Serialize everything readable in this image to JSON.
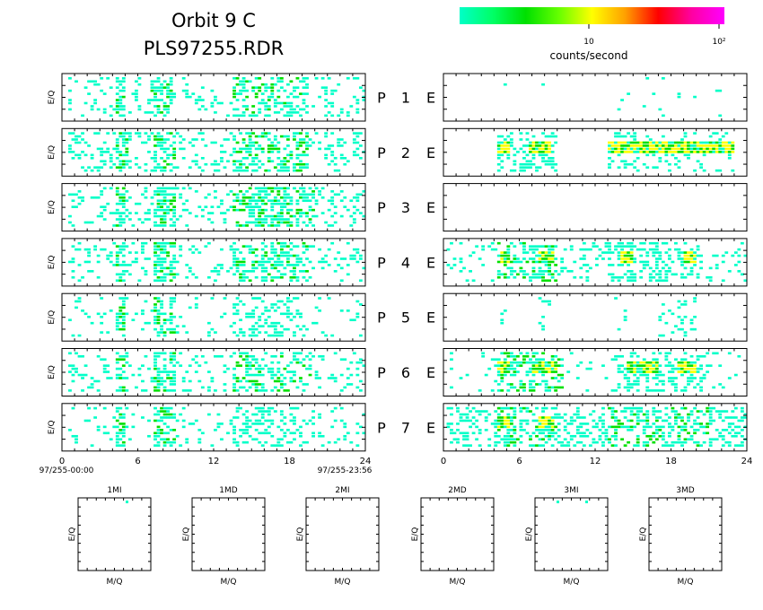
{
  "header": {
    "title_line1": "Orbit  9  C",
    "title_line2": "PLS97255.RDR"
  },
  "colorbar": {
    "colors": [
      "#00ffc8",
      "#00ff66",
      "#00e000",
      "#66ff00",
      "#ffff00",
      "#ffa000",
      "#ff0000",
      "#ff00a0",
      "#ff00ff"
    ],
    "tick_labels": [
      "10",
      "10²"
    ],
    "label": "counts/second"
  },
  "chart_data": {
    "type": "heatmap",
    "description_none": "",
    "x_range": [
      0,
      24
    ],
    "x_ticks": [
      "0",
      "6",
      "12",
      "18",
      "24"
    ],
    "y_label": "E/Q",
    "time_start": "97/255-00:00",
    "time_end": "97/255-23:56",
    "cell_colors": {
      "low": "#00ffc8",
      "mid": "#00e000",
      "high": "#ffff00"
    },
    "rows": [
      {
        "label": "P",
        "number": "1",
        "right": "E",
        "left_bands": [
          [
            0.5,
            24,
            0.15
          ],
          [
            4.3,
            5.0,
            0.6
          ],
          [
            7.0,
            8.8,
            0.5
          ],
          [
            13.5,
            19.5,
            0.45
          ]
        ],
        "right_bands": [
          [
            4.5,
            5.0,
            0.06
          ],
          [
            7.5,
            8.0,
            0.08
          ],
          [
            13,
            22,
            0.03
          ]
        ],
        "right_hot": []
      },
      {
        "label": "P",
        "number": "2",
        "right": "E",
        "left_bands": [
          [
            0.5,
            24,
            0.2
          ],
          [
            4.3,
            5.2,
            0.65
          ],
          [
            7.2,
            9.0,
            0.6
          ],
          [
            13.5,
            19.5,
            0.5
          ]
        ],
        "right_bands": [
          [
            4.3,
            9.0,
            0.35
          ],
          [
            13.0,
            23.0,
            0.2
          ]
        ],
        "right_hot": [
          [
            4.3,
            5.2
          ],
          [
            6.8,
            8.5
          ],
          [
            13.0,
            23.0
          ]
        ]
      },
      {
        "label": "P",
        "number": "3",
        "right": "E",
        "left_bands": [
          [
            0.5,
            24,
            0.2
          ],
          [
            4.3,
            5.0,
            0.7
          ],
          [
            7.2,
            9.0,
            0.65
          ],
          [
            13.5,
            20.0,
            0.55
          ]
        ],
        "right_bands": [],
        "right_hot": []
      },
      {
        "label": "P",
        "number": "4",
        "right": "E",
        "left_bands": [
          [
            0.5,
            24,
            0.15
          ],
          [
            4.3,
            5.0,
            0.65
          ],
          [
            7.2,
            9.0,
            0.6
          ],
          [
            13.5,
            19.8,
            0.45
          ]
        ],
        "right_bands": [
          [
            0.2,
            24,
            0.15
          ],
          [
            4.3,
            9.0,
            0.45
          ],
          [
            13.0,
            20.0,
            0.4
          ]
        ],
        "right_hot": [
          [
            4.5,
            5.2
          ],
          [
            7.5,
            8.8
          ],
          [
            14.0,
            15.0
          ],
          [
            19.0,
            20.0
          ]
        ]
      },
      {
        "label": "P",
        "number": "5",
        "right": "E",
        "left_bands": [
          [
            0.5,
            24,
            0.08
          ],
          [
            4.3,
            5.0,
            0.55
          ],
          [
            7.2,
            9.0,
            0.45
          ],
          [
            13.5,
            19.0,
            0.25
          ]
        ],
        "right_bands": [
          [
            4.5,
            5.0,
            0.15
          ],
          [
            7.5,
            8.8,
            0.15
          ],
          [
            13.5,
            14.5,
            0.12
          ],
          [
            17.0,
            20.0,
            0.12
          ]
        ],
        "right_hot": []
      },
      {
        "label": "P",
        "number": "6",
        "right": "E",
        "left_bands": [
          [
            0.5,
            24,
            0.15
          ],
          [
            4.3,
            5.0,
            0.6
          ],
          [
            7.2,
            9.0,
            0.55
          ],
          [
            13.5,
            19.8,
            0.45
          ]
        ],
        "right_bands": [
          [
            0.2,
            24,
            0.08
          ],
          [
            4.3,
            9.5,
            0.45
          ],
          [
            13.5,
            21.0,
            0.35
          ]
        ],
        "right_hot": [
          [
            4.3,
            5.2
          ],
          [
            7.0,
            9.0
          ],
          [
            14.5,
            17.0
          ],
          [
            18.5,
            20.0
          ]
        ]
      },
      {
        "label": "P",
        "number": "7",
        "right": "E",
        "left_bands": [
          [
            0.5,
            24,
            0.12
          ],
          [
            4.3,
            5.0,
            0.55
          ],
          [
            7.2,
            9.0,
            0.5
          ],
          [
            13.5,
            19.0,
            0.35
          ]
        ],
        "right_bands": [
          [
            0.2,
            24,
            0.35
          ],
          [
            4.3,
            9.0,
            0.5
          ],
          [
            13.0,
            21.0,
            0.45
          ]
        ],
        "right_hot": [
          [
            4.3,
            5.2
          ],
          [
            7.5,
            8.8
          ]
        ]
      }
    ],
    "mq_panels": [
      {
        "title": "1MI",
        "xlabel": "M/Q",
        "ylabel": "E/Q"
      },
      {
        "title": "1MD",
        "xlabel": "M/Q",
        "ylabel": "E/Q"
      },
      {
        "title": "2MI",
        "xlabel": "M/Q",
        "ylabel": "E/Q"
      },
      {
        "title": "2MD",
        "xlabel": "M/Q",
        "ylabel": "E/Q"
      },
      {
        "title": "3MI",
        "xlabel": "M/Q",
        "ylabel": "E/Q"
      },
      {
        "title": "3MD",
        "xlabel": "M/Q",
        "ylabel": "E/Q"
      }
    ]
  }
}
